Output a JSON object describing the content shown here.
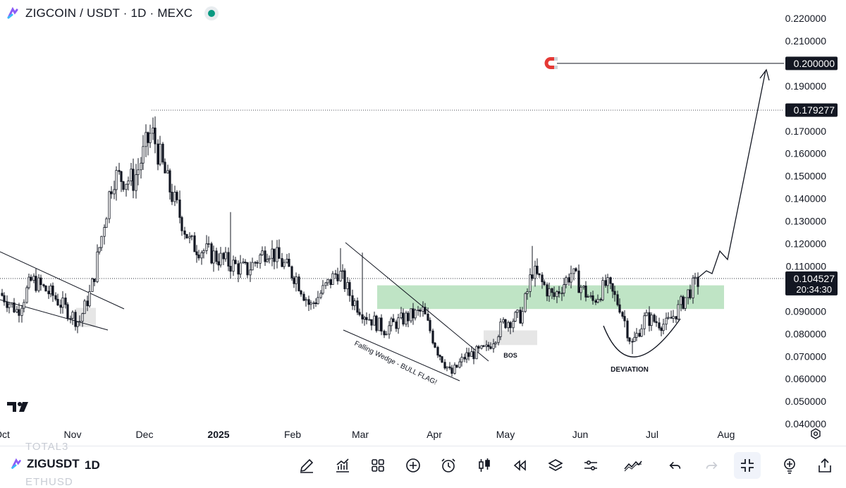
{
  "header": {
    "symbol_line": "ZIGCOIN / USDT · 1D · MEXC"
  },
  "colors": {
    "up": "#ffffff",
    "down": "#131722",
    "zone": "#a9dbb1",
    "grey_zone": "#e6e6e6",
    "live_dot": "#089981"
  },
  "chart_data": {
    "type": "candlestick",
    "y_axis": {
      "ticks": [
        "0.220000",
        "0.210000",
        "0.200000",
        "0.190000",
        "0.180000",
        "0.170000",
        "0.160000",
        "0.150000",
        "0.140000",
        "0.130000",
        "0.120000",
        "0.110000",
        "0.100000",
        "0.090000",
        "0.080000",
        "0.070000",
        "0.060000",
        "0.050000",
        "0.040000"
      ]
    },
    "x_axis": {
      "labels": [
        "Oct",
        "Nov",
        "Dec",
        "2025",
        "Feb",
        "Mar",
        "Apr",
        "May",
        "Jun",
        "Jul",
        "Aug"
      ]
    },
    "price_labels": {
      "target": "0.200000",
      "high": "0.179277",
      "current": "0.104527",
      "countdown": "20:34:30"
    },
    "annotations": {
      "wedge": "Falling Wedge - BULL FLAG!",
      "bos": "BOS",
      "deviation": "DEVIATION"
    },
    "key_levels": {
      "target": 0.2,
      "high": 0.179277,
      "current": 0.104527,
      "zone": [
        0.091,
        0.1015
      ]
    }
  },
  "bottom": {
    "ghost_top": "TOTAL3",
    "ghost_bottom": "ETHUSD",
    "symbol": "ZIGUSDT",
    "interval": "1D",
    "tools": [
      "pencil-icon",
      "chart-up-icon",
      "grid-icon",
      "plus-circle-icon",
      "alarm-icon",
      "candles-icon",
      "rewind-icon",
      "layers-icon",
      "sliders-icon",
      "indicator-line-icon",
      "undo-icon",
      "redo-icon",
      "collapse-icon",
      "lightbulb-icon",
      "share-icon"
    ]
  }
}
